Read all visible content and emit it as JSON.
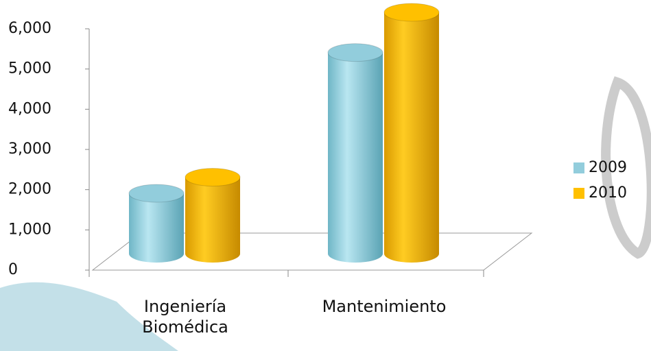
{
  "chart_data": {
    "type": "bar",
    "categories": [
      "Ingeniería Biomédica",
      "Mantenimiento"
    ],
    "series": [
      {
        "name": "2009",
        "color": "#92cddc",
        "values": [
          1500,
          5000
        ]
      },
      {
        "name": "2010",
        "color": "#ffc000",
        "values": [
          1900,
          6000
        ]
      }
    ],
    "ylim": [
      0,
      6000
    ],
    "yticks": [
      0,
      {
        "value": 1000,
        "label": "1,000"
      },
      {
        "value": 2000,
        "label": "2,000"
      },
      {
        "value": 3000,
        "label": "3,000"
      },
      {
        "value": 4000,
        "label": "4,000"
      },
      {
        "value": 5000,
        "label": "5,000"
      },
      {
        "value": 6000,
        "label": "6,000"
      }
    ],
    "legend": "right"
  }
}
